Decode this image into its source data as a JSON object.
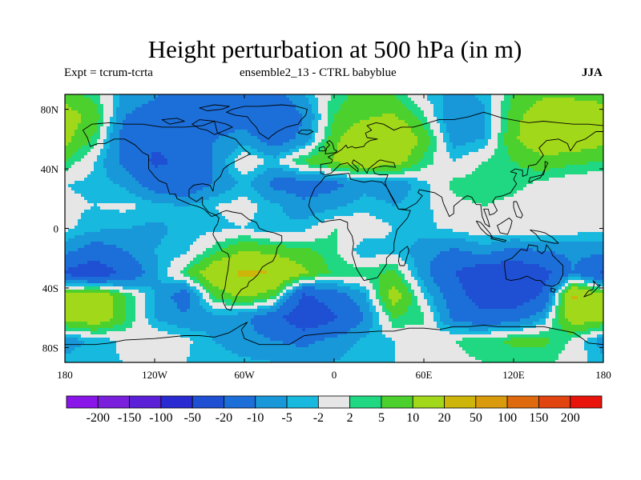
{
  "chart_data": {
    "type": "heatmap",
    "title": "Height perturbation at 500 hPa (in m)",
    "subtitle_left": "Expt = tcrum-tcrta",
    "subtitle_center": "ensemble2_13 - CTRL babyblue",
    "season": "JJA",
    "x_ticks": [
      "180",
      "120W",
      "60W",
      "0",
      "60E",
      "120E",
      "180"
    ],
    "x_tick_lons": [
      -180,
      -120,
      -60,
      0,
      60,
      120,
      180
    ],
    "y_ticks": [
      "80N",
      "40N",
      "0",
      "40S",
      "80S"
    ],
    "y_tick_lats": [
      80,
      40,
      0,
      -40,
      -80
    ],
    "xlim": [
      -180,
      180
    ],
    "ylim": [
      -90,
      90
    ],
    "colorbar": {
      "labels": [
        "-200",
        "-150",
        "-100",
        "-50",
        "-20",
        "-10",
        "-5",
        "-2",
        "2",
        "5",
        "10",
        "20",
        "50",
        "100",
        "150",
        "200"
      ],
      "colors": [
        "#8a15e8",
        "#7a1fdb",
        "#5a1fd6",
        "#2a2ad2",
        "#1f50d4",
        "#1c6fd8",
        "#1898d8",
        "#17b9de",
        "#e6e6e6",
        "#20d882",
        "#4cd02e",
        "#a2d81a",
        "#cdb50a",
        "#d99a0c",
        "#df6a0e",
        "#e24410",
        "#e8140c"
      ]
    },
    "field_grid": {
      "lon_step": 20,
      "lat_step": 15,
      "lons": [
        -180,
        -160,
        -140,
        -120,
        -100,
        -80,
        -60,
        -40,
        -20,
        0,
        20,
        40,
        60,
        80,
        100,
        120,
        140,
        160,
        180
      ],
      "lats": [
        90,
        75,
        60,
        45,
        30,
        15,
        0,
        -15,
        -30,
        -45,
        -60,
        -75,
        -90
      ],
      "values": [
        [
          8,
          3,
          -6,
          -9,
          -13,
          -13,
          -14,
          -12,
          -5,
          3,
          7,
          5,
          -2,
          -7,
          -4,
          5,
          9,
          9,
          8
        ],
        [
          13,
          8,
          -10,
          -14,
          -18,
          -16,
          -13,
          -18,
          -10,
          5,
          9,
          11,
          3,
          -10,
          -6,
          8,
          15,
          14,
          13
        ],
        [
          12,
          4,
          -14,
          -18,
          -18,
          -10,
          -7,
          -14,
          -8,
          8,
          18,
          19,
          8,
          -7,
          -5,
          9,
          16,
          15,
          12
        ],
        [
          5,
          -2,
          -12,
          -22,
          -18,
          -9,
          2,
          -3,
          6,
          11,
          16,
          14,
          4,
          -2,
          2,
          5,
          8,
          6,
          5
        ],
        [
          -2,
          -3,
          -6,
          -14,
          -17,
          -9,
          -4,
          -12,
          -14,
          -12,
          -7,
          -8,
          -3,
          3,
          4,
          3,
          1,
          -1,
          -2
        ],
        [
          -1,
          -2,
          -1,
          -3,
          -5,
          -2,
          0,
          -4,
          -8,
          -6,
          -3,
          -5,
          -3,
          1,
          2,
          1,
          0,
          -1,
          -1
        ],
        [
          -1,
          -4,
          -5,
          -6,
          -4,
          -3,
          -2,
          -5,
          -3,
          2,
          1,
          -2,
          -3,
          -1,
          1,
          2,
          2,
          0,
          -1
        ],
        [
          -8,
          -14,
          -10,
          -5,
          -3,
          4,
          10,
          8,
          6,
          3,
          -5,
          -3,
          -8,
          -11,
          -7,
          -12,
          -10,
          -8,
          -8
        ],
        [
          -22,
          -28,
          -18,
          -6,
          4,
          16,
          22,
          20,
          11,
          4,
          4,
          6,
          -8,
          -20,
          -28,
          -30,
          -24,
          -10,
          -22
        ],
        [
          12,
          18,
          5,
          -5,
          -14,
          6,
          12,
          6,
          -22,
          -14,
          -6,
          14,
          -2,
          -14,
          -28,
          -30,
          -18,
          22,
          12
        ],
        [
          12,
          16,
          6,
          -5,
          -9,
          -7,
          -9,
          -16,
          -30,
          -22,
          -10,
          5,
          3,
          -12,
          -16,
          -14,
          -5,
          15,
          12
        ],
        [
          -7,
          -4,
          -1,
          1,
          -1,
          -5,
          -8,
          -10,
          -12,
          -8,
          -4,
          -2,
          -1,
          2,
          4,
          6,
          6,
          1,
          -7
        ],
        [
          -4,
          -3,
          -2,
          -1,
          -2,
          -3,
          -4,
          -5,
          -6,
          -5,
          -3,
          -2,
          -1,
          1,
          2,
          3,
          3,
          0,
          -4
        ]
      ]
    },
    "map": {
      "coastline_color": "#000000",
      "missing_color": "#e6e6e6",
      "frame_color": "#000000"
    }
  }
}
